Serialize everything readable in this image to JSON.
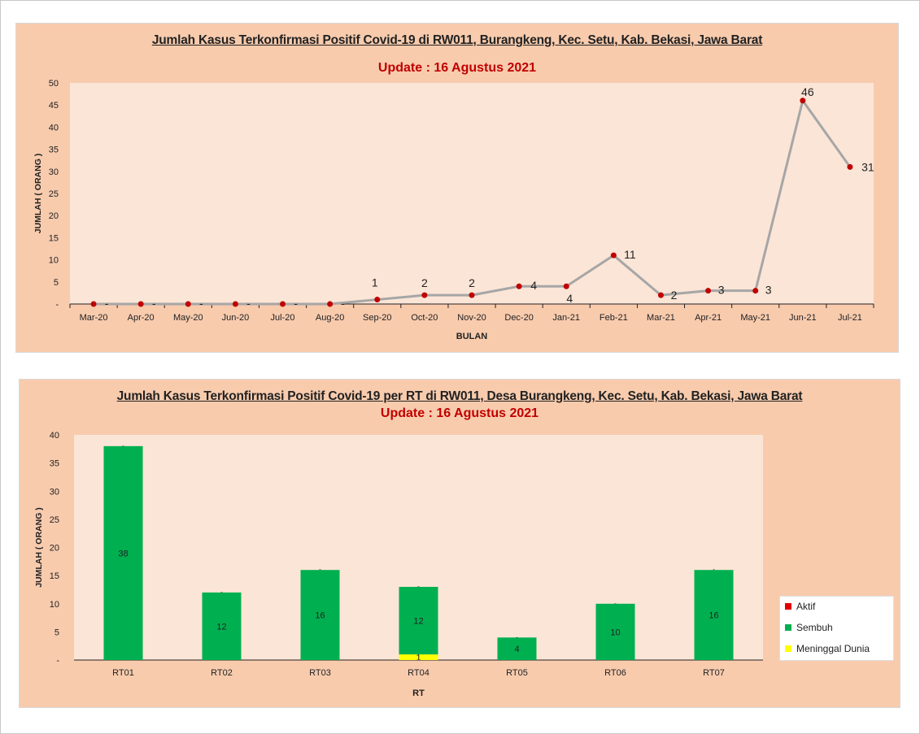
{
  "colors": {
    "panel_bg": "#f8cbad",
    "plot_bg": "#fbe5d6",
    "line": "#a6a6a6",
    "marker": "#c00000",
    "subtitle": "#c00000",
    "aktif": "#e00000",
    "sembuh": "#00b050",
    "meninggal": "#ffff00"
  },
  "chart1": {
    "title": "Jumlah Kasus Terkonfirmasi Positif Covid-19 di RW011, Burangkeng, Kec. Setu, Kab. Bekasi, Jawa Barat",
    "subtitle": "Update : 16 Agustus 2021"
  },
  "chart2": {
    "title": "Jumlah Kasus Terkonfirmasi Positif Covid-19 per RT di RW011, Desa Burangkeng, Kec. Setu, Kab. Bekasi, Jawa Barat",
    "subtitle": "Update : 16 Agustus 2021",
    "legend": [
      "Aktif",
      "Sembuh",
      "Meninggal Dunia"
    ]
  },
  "chart_data": [
    {
      "type": "line",
      "title": "Jumlah Kasus Terkonfirmasi Positif Covid-19 di RW011, Burangkeng, Kec. Setu, Kab. Bekasi, Jawa Barat",
      "subtitle": "Update : 16 Agustus 2021",
      "xlabel": "BULAN",
      "ylabel": "JUMLAH ( ORANG )",
      "ylim": [
        0,
        50
      ],
      "yticks": [
        "-",
        "5",
        "10",
        "15",
        "20",
        "25",
        "30",
        "35",
        "40",
        "45",
        "50"
      ],
      "categories": [
        "Mar-20",
        "Apr-20",
        "May-20",
        "Jun-20",
        "Jul-20",
        "Aug-20",
        "Sep-20",
        "Oct-20",
        "Nov-20",
        "Dec-20",
        "Jan-21",
        "Feb-21",
        "Mar-21",
        "Apr-21",
        "May-21",
        "Jun-21",
        "Jul-21"
      ],
      "values": [
        0,
        0,
        0,
        0,
        0,
        0,
        1,
        2,
        2,
        4,
        4,
        11,
        2,
        3,
        3,
        46,
        31
      ],
      "data_labels": [
        "-",
        "-",
        "-",
        "-",
        "-",
        "-",
        "1",
        "2",
        "2",
        "4",
        "4",
        "11",
        "2",
        "3",
        "3",
        "46",
        "31"
      ]
    },
    {
      "type": "bar",
      "stacked": true,
      "title": "Jumlah Kasus Terkonfirmasi Positif Covid-19 per RT di RW011, Desa Burangkeng, Kec. Setu, Kab. Bekasi, Jawa Barat",
      "subtitle": "Update : 16 Agustus 2021",
      "xlabel": "RT",
      "ylabel": "JUMLAH ( ORANG )",
      "ylim": [
        0,
        40
      ],
      "yticks": [
        "-",
        "5",
        "10",
        "15",
        "20",
        "25",
        "30",
        "35",
        "40"
      ],
      "categories": [
        "RT01",
        "RT02",
        "RT03",
        "RT04",
        "RT05",
        "RT06",
        "RT07"
      ],
      "series": [
        {
          "name": "Meninggal Dunia",
          "values": [
            0,
            0,
            0,
            1,
            0,
            0,
            0
          ],
          "labels": [
            "-",
            "-",
            "-",
            "1",
            "-",
            "-",
            "-"
          ]
        },
        {
          "name": "Sembuh",
          "values": [
            38,
            12,
            16,
            12,
            4,
            10,
            16
          ],
          "labels": [
            "38",
            "12",
            "16",
            "12",
            "4",
            "10",
            "16"
          ]
        },
        {
          "name": "Aktif",
          "values": [
            0,
            0,
            0,
            0,
            0,
            0,
            0
          ],
          "labels": [
            "-",
            "-",
            "-",
            "-",
            "-",
            "-",
            "-"
          ]
        }
      ]
    }
  ]
}
